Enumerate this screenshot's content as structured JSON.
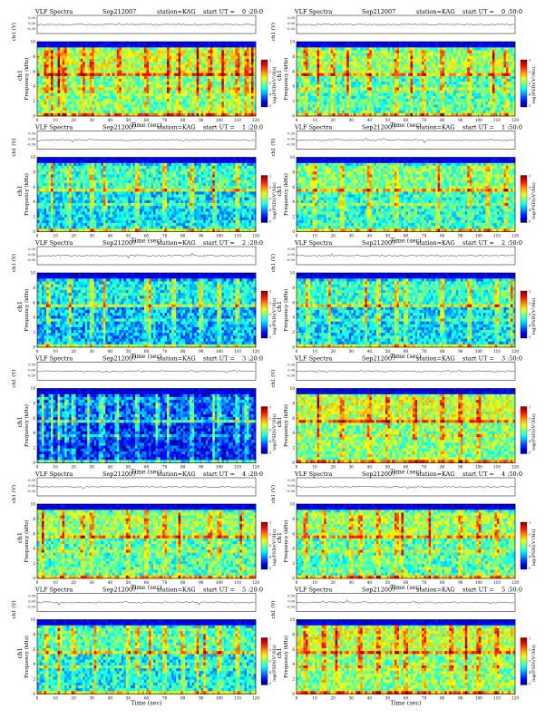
{
  "header": {
    "title": "VLF Spectra",
    "date": "Sep212007",
    "station": "station=KAG",
    "start_prefix": "start  UT ="
  },
  "axis_labels": {
    "time": "Time (sec)",
    "frequency": "Frequency (kHz)",
    "channel": "ch1",
    "strip": "ch1 (V)",
    "colorbar": "log(PSD)(V²/Hz)"
  },
  "strip_ticks": [
    "0.30",
    "0.00",
    "-0.30"
  ],
  "colorbar_ticks": [
    "-1",
    "-2",
    "-3",
    "-4",
    "-5"
  ],
  "chart_data": {
    "type": "heatmap",
    "x_ticks": [
      0,
      10,
      20,
      30,
      40,
      50,
      60,
      70,
      80,
      90,
      100,
      110,
      120
    ],
    "y_ticks": [
      0,
      2,
      4,
      6,
      8,
      10
    ],
    "xlim": [
      0,
      120
    ],
    "ylim": [
      0,
      10
    ],
    "xlabel": "Time (sec)",
    "ylabel": "Frequency (kHz)",
    "colorbar_label": "log(PSD)(V²/Hz)",
    "panels": [
      {
        "start_ut": "0 :20:0",
        "level": 0.5,
        "bursts": [
          5,
          8,
          12,
          15,
          25,
          30,
          45,
          60,
          72,
          78,
          88,
          95,
          102,
          110,
          115,
          118
        ]
      },
      {
        "start_ut": "0 :50:0",
        "level": 0.45,
        "bursts": [
          5,
          12,
          20,
          28,
          40,
          55,
          63,
          70,
          80,
          95,
          108,
          115
        ]
      },
      {
        "start_ut": "1 :20:0",
        "level": 0.35,
        "bursts": [
          8,
          18,
          30,
          37,
          55,
          70,
          85,
          97,
          110
        ]
      },
      {
        "start_ut": "1 :50:0",
        "level": 0.42,
        "bursts": [
          10,
          25,
          40,
          55,
          78,
          95,
          105,
          115
        ]
      },
      {
        "start_ut": "2 :20:0",
        "level": 0.3,
        "bursts": [
          6,
          18,
          30,
          37,
          60,
          62,
          75,
          90,
          100,
          110
        ]
      },
      {
        "start_ut": "2 :50:0",
        "level": 0.35,
        "bursts": [
          6,
          18,
          38,
          45,
          55,
          60,
          80,
          95,
          110,
          118
        ]
      },
      {
        "start_ut": "3 :20:0",
        "level": 0.15,
        "bursts": [
          3,
          8,
          12,
          16,
          20,
          28,
          35,
          36,
          44,
          55,
          66,
          72,
          85,
          97,
          100,
          110,
          115
        ]
      },
      {
        "start_ut": "3 :50:0",
        "level": 0.5,
        "bursts": [
          12,
          25,
          40,
          50,
          65,
          80,
          90,
          100
        ]
      },
      {
        "start_ut": "4 :20:0",
        "level": 0.45,
        "bursts": [
          3,
          14,
          25,
          30,
          50,
          60,
          70,
          78,
          95,
          100,
          112
        ]
      },
      {
        "start_ut": "4 :50:0",
        "level": 0.45,
        "bursts": [
          5,
          15,
          30,
          35,
          45,
          55,
          58,
          73,
          90,
          100,
          110
        ]
      },
      {
        "start_ut": "5 :20:0",
        "level": 0.38,
        "bursts": [
          5,
          12,
          20,
          32,
          50,
          55,
          62,
          70,
          80,
          88,
          92,
          100,
          110
        ]
      },
      {
        "start_ut": "5 :50:0",
        "level": 0.5,
        "bursts": [
          5,
          15,
          22,
          35,
          45,
          55,
          60,
          70,
          85,
          93,
          100,
          110
        ]
      }
    ]
  }
}
